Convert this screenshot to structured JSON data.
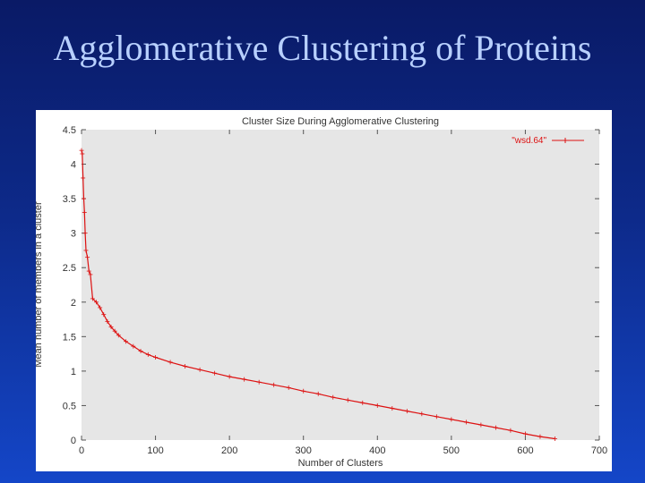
{
  "slide": {
    "title": "Agglomerative Clustering of Proteins"
  },
  "colors": {
    "series": "#dd1111",
    "plot_background": "#e6e6e6",
    "panel_background": "#ffffff"
  },
  "chart_data": {
    "type": "line",
    "title": "Cluster Size During Agglomerative Clustering",
    "xlabel": "Number of Clusters",
    "ylabel": "Mean number of members in a cluster",
    "xlim": [
      0,
      700
    ],
    "ylim": [
      0,
      4.5
    ],
    "xticks": [
      0,
      100,
      200,
      300,
      400,
      500,
      600,
      700
    ],
    "yticks": [
      0,
      0.5,
      1,
      1.5,
      2,
      2.5,
      3,
      3.5,
      4,
      4.5
    ],
    "xtick_labels": [
      "0",
      "100",
      "200",
      "300",
      "400",
      "500",
      "600",
      "700"
    ],
    "ytick_labels": [
      "0",
      "0.5",
      "1",
      "1.5",
      "2",
      "2.5",
      "3",
      "3.5",
      "4",
      "4.5"
    ],
    "legend_position": "top-right",
    "series": [
      {
        "name": "\"wsd.64\"",
        "marker": "+",
        "x": [
          0,
          1,
          2,
          3,
          4,
          5,
          6,
          8,
          10,
          12,
          15,
          20,
          25,
          30,
          35,
          40,
          45,
          50,
          60,
          70,
          80,
          90,
          100,
          120,
          140,
          160,
          180,
          200,
          220,
          240,
          260,
          280,
          300,
          320,
          340,
          360,
          380,
          400,
          420,
          440,
          460,
          480,
          500,
          520,
          540,
          560,
          580,
          600,
          620,
          640
        ],
        "y": [
          4.2,
          4.15,
          3.8,
          3.5,
          3.3,
          3.0,
          2.75,
          2.65,
          2.45,
          2.4,
          2.05,
          2.0,
          1.92,
          1.82,
          1.72,
          1.64,
          1.58,
          1.52,
          1.43,
          1.36,
          1.29,
          1.24,
          1.2,
          1.13,
          1.07,
          1.02,
          0.97,
          0.92,
          0.88,
          0.84,
          0.8,
          0.76,
          0.71,
          0.67,
          0.62,
          0.58,
          0.54,
          0.5,
          0.46,
          0.42,
          0.38,
          0.34,
          0.3,
          0.26,
          0.22,
          0.18,
          0.14,
          0.09,
          0.05,
          0.02
        ]
      }
    ]
  }
}
